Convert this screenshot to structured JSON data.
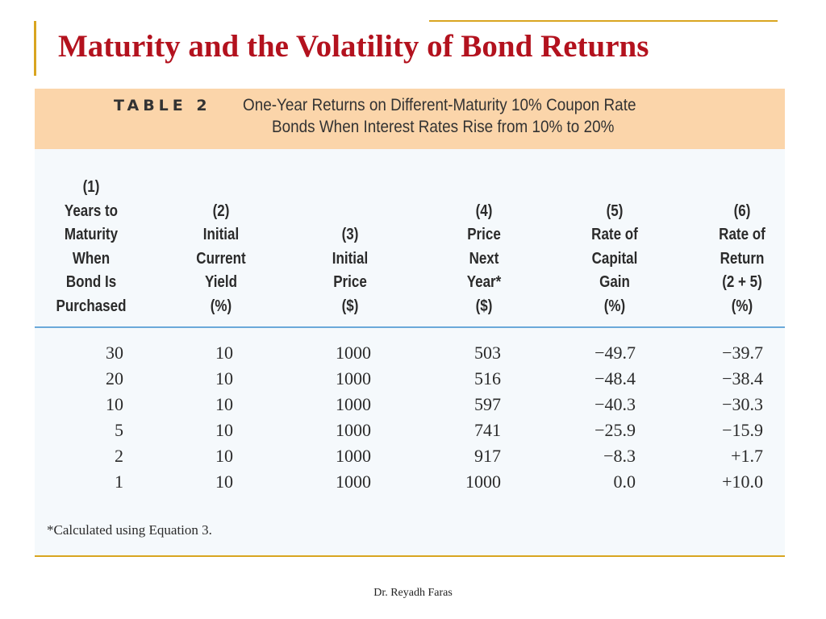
{
  "slide": {
    "title": "Maturity and the Volatility of Bond Returns",
    "footer": "Dr. Reyadh Faras"
  },
  "colors": {
    "title": "#b3121e",
    "rule_gold": "#d9a520",
    "banner": "#fbd5aa",
    "table_bg": "#f5f9fc",
    "header_rule": "#6ba9d9"
  },
  "table": {
    "label": "TABLE 2",
    "caption_line1": "One-Year Returns on Different-Maturity 10% Coupon Rate",
    "caption_line2": "Bonds When Interest Rates Rise from 10% to 20%",
    "columns": [
      {
        "lines": [
          "(1)",
          "Years to",
          "Maturity",
          "When",
          "Bond Is",
          "Purchased"
        ]
      },
      {
        "lines": [
          "(2)",
          "Initial",
          "Current",
          "Yield",
          "(%)"
        ]
      },
      {
        "lines": [
          "(3)",
          "Initial",
          "Price",
          "($)"
        ]
      },
      {
        "lines": [
          "(4)",
          "Price",
          "Next",
          "Year*",
          "($)"
        ]
      },
      {
        "lines": [
          "(5)",
          "Rate of",
          "Capital",
          "Gain",
          "(%)"
        ]
      },
      {
        "lines": [
          "(6)",
          "Rate of",
          "Return",
          "(2 + 5)",
          "(%)"
        ]
      }
    ],
    "rows": [
      [
        "30",
        "10",
        "1000",
        "503",
        "−49.7",
        "−39.7"
      ],
      [
        "20",
        "10",
        "1000",
        "516",
        "−48.4",
        "−38.4"
      ],
      [
        "10",
        "10",
        "1000",
        "597",
        "−40.3",
        "−30.3"
      ],
      [
        "5",
        "10",
        "1000",
        "741",
        "−25.9",
        "−15.9"
      ],
      [
        "2",
        "10",
        "1000",
        "917",
        "−8.3",
        "+1.7"
      ],
      [
        "1",
        "10",
        "1000",
        "1000",
        "0.0",
        "+10.0"
      ]
    ],
    "footnote": "*Calculated using Equation 3."
  }
}
